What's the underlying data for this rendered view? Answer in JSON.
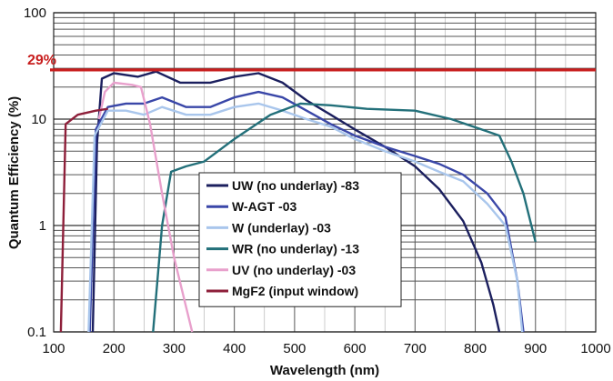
{
  "chart_data": {
    "type": "line",
    "xlabel": "Wavelength (nm)",
    "ylabel": "Quantum Efficiency (%)",
    "xlim": [
      100,
      1000
    ],
    "ylim": [
      0.1,
      100
    ],
    "yscale": "log",
    "grid": true,
    "x_ticks": [
      100,
      200,
      300,
      400,
      500,
      600,
      700,
      800,
      900,
      1000
    ],
    "y_ticks": [
      {
        "value": 0.1,
        "label": "0.1"
      },
      {
        "value": 1,
        "label": "1"
      },
      {
        "value": 10,
        "label": "10"
      },
      {
        "value": 100,
        "label": "100"
      }
    ],
    "annotations": [
      {
        "text": "29%",
        "x": 100,
        "y": 29,
        "color": "#c81e1e"
      }
    ],
    "legend_position": "lower-middle",
    "series": [
      {
        "name": "UW (no underlay)  -83",
        "color": "#1b1f5e",
        "points": [
          [
            165,
            0.1
          ],
          [
            172,
            6
          ],
          [
            180,
            24
          ],
          [
            200,
            27
          ],
          [
            240,
            25
          ],
          [
            270,
            28
          ],
          [
            310,
            22
          ],
          [
            360,
            22
          ],
          [
            400,
            25
          ],
          [
            440,
            27
          ],
          [
            480,
            22
          ],
          [
            520,
            15
          ],
          [
            560,
            11
          ],
          [
            600,
            8
          ],
          [
            650,
            5.5
          ],
          [
            700,
            3.6
          ],
          [
            740,
            2.2
          ],
          [
            780,
            1.1
          ],
          [
            810,
            0.45
          ],
          [
            830,
            0.18
          ],
          [
            840,
            0.1
          ]
        ]
      },
      {
        "name": "W-AGT  -03",
        "color": "#3a47a8",
        "points": [
          [
            160,
            0.1
          ],
          [
            170,
            8
          ],
          [
            190,
            13
          ],
          [
            220,
            14
          ],
          [
            250,
            14
          ],
          [
            280,
            16
          ],
          [
            320,
            13
          ],
          [
            360,
            13
          ],
          [
            400,
            16
          ],
          [
            440,
            18
          ],
          [
            480,
            16
          ],
          [
            520,
            12
          ],
          [
            560,
            9
          ],
          [
            600,
            7
          ],
          [
            650,
            5.5
          ],
          [
            700,
            4.5
          ],
          [
            740,
            3.8
          ],
          [
            780,
            3
          ],
          [
            820,
            2
          ],
          [
            850,
            1.2
          ],
          [
            870,
            0.3
          ],
          [
            880,
            0.1
          ]
        ]
      },
      {
        "name": "W (underlay)  -03",
        "color": "#a9c6ec",
        "points": [
          [
            158,
            0.1
          ],
          [
            168,
            7
          ],
          [
            190,
            12
          ],
          [
            220,
            12
          ],
          [
            250,
            11
          ],
          [
            280,
            13
          ],
          [
            320,
            11
          ],
          [
            360,
            11
          ],
          [
            400,
            13
          ],
          [
            440,
            14
          ],
          [
            480,
            12
          ],
          [
            520,
            10
          ],
          [
            560,
            8.5
          ],
          [
            600,
            6.5
          ],
          [
            650,
            5
          ],
          [
            700,
            4
          ],
          [
            740,
            3.2
          ],
          [
            780,
            2.6
          ],
          [
            820,
            1.6
          ],
          [
            850,
            1
          ],
          [
            870,
            0.3
          ],
          [
            878,
            0.1
          ]
        ]
      },
      {
        "name": "WR (no underlay)  -13",
        "color": "#23707a",
        "points": [
          [
            265,
            0.1
          ],
          [
            280,
            1
          ],
          [
            295,
            3.2
          ],
          [
            320,
            3.6
          ],
          [
            350,
            4
          ],
          [
            400,
            6.5
          ],
          [
            460,
            11
          ],
          [
            510,
            14
          ],
          [
            560,
            13.5
          ],
          [
            620,
            12.5
          ],
          [
            700,
            12
          ],
          [
            760,
            10
          ],
          [
            810,
            8
          ],
          [
            840,
            7
          ],
          [
            860,
            4
          ],
          [
            880,
            2
          ],
          [
            900,
            0.7
          ]
        ]
      },
      {
        "name": "UV (no underlay)  -03",
        "color": "#e8a0cc",
        "points": [
          [
            175,
            10
          ],
          [
            185,
            18
          ],
          [
            200,
            22
          ],
          [
            230,
            21
          ],
          [
            245,
            20
          ],
          [
            260,
            9
          ],
          [
            280,
            2
          ],
          [
            300,
            0.5
          ],
          [
            320,
            0.17
          ],
          [
            330,
            0.1
          ]
        ]
      },
      {
        "name": "MgF2 (input window)",
        "color": "#8e1f3a",
        "points": [
          [
            112,
            0.1
          ],
          [
            116,
            1
          ],
          [
            120,
            9
          ],
          [
            140,
            11
          ],
          [
            170,
            12
          ],
          [
            190,
            12.5
          ]
        ]
      }
    ]
  }
}
